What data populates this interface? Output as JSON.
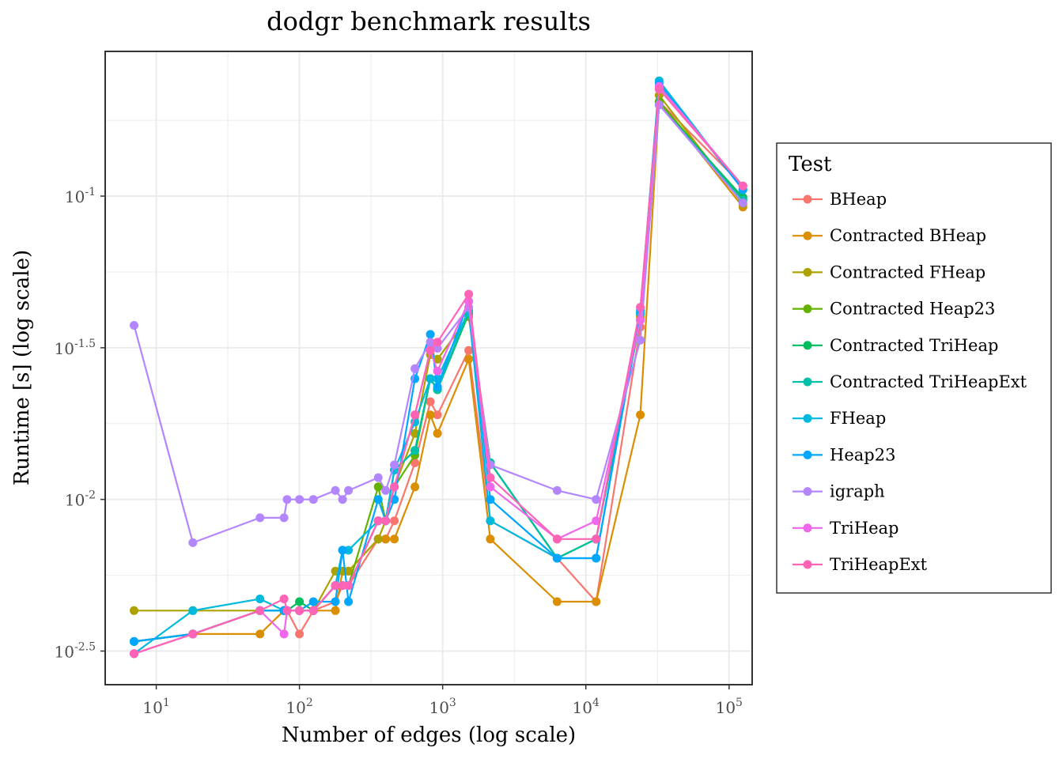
{
  "chart_data": {
    "type": "line",
    "title": "dodgr benchmark results",
    "xlabel": "Number of edges (log scale)",
    "ylabel": "Runtime [s] (log scale)",
    "x_scale": "log10",
    "y_scale": "log10",
    "x_ticks": [
      10,
      100,
      1000,
      10000,
      100000
    ],
    "y_ticks": [
      0.0031623,
      0.01,
      0.031623,
      0.1
    ],
    "x_tick_labels": [
      {
        "base": "10",
        "exp": "1"
      },
      {
        "base": "10",
        "exp": "2"
      },
      {
        "base": "10",
        "exp": "3"
      },
      {
        "base": "10",
        "exp": "4"
      },
      {
        "base": "10",
        "exp": "5"
      }
    ],
    "y_tick_labels": [
      {
        "base": "10",
        "exp": "-2.5"
      },
      {
        "base": "10",
        "exp": "-2"
      },
      {
        "base": "10",
        "exp": "-1.5"
      },
      {
        "base": "10",
        "exp": "-1"
      }
    ],
    "xlim": [
      4.4,
      145000
    ],
    "ylim": [
      0.00245,
      0.3
    ],
    "grid": true,
    "legend": {
      "title": "Test",
      "position": "right"
    },
    "x": [
      7,
      18,
      53,
      78,
      82,
      100,
      125,
      178,
      200,
      220,
      355,
      400,
      460,
      640,
      820,
      920,
      1520,
      2150,
      6300,
      11800,
      24000,
      32500,
      125000
    ],
    "series": [
      {
        "name": "BHeap",
        "color": "#F8766D",
        "values": [
          0.0034,
          0.0036,
          0.0043,
          0.0043,
          0.0043,
          0.0036,
          0.0043,
          0.0046,
          0.0052,
          0.0052,
          0.0074,
          0.0074,
          0.0085,
          0.0132,
          0.021,
          0.019,
          0.031,
          0.0085,
          0.0064,
          0.0046,
          0.037,
          0.205,
          0.108
        ]
      },
      {
        "name": "Contracted BHeap",
        "color": "#DB8E00",
        "values": [
          0.0034,
          0.0036,
          0.0036,
          0.0043,
          0.0043,
          0.0043,
          0.0043,
          0.0043,
          0.0058,
          0.0058,
          0.0074,
          0.0074,
          0.0074,
          0.011,
          0.019,
          0.0165,
          0.029,
          0.0074,
          0.0046,
          0.0046,
          0.019,
          0.205,
          0.092
        ]
      },
      {
        "name": "Contracted FHeap",
        "color": "#AEA200",
        "values": [
          0.0043,
          0.0043,
          0.0043,
          0.0043,
          0.0043,
          0.0043,
          0.0043,
          0.0058,
          0.0058,
          0.0058,
          0.0074,
          0.0085,
          0.011,
          0.0165,
          0.03,
          0.029,
          0.04,
          0.0132,
          0.0064,
          0.0074,
          0.04,
          0.215,
          0.094
        ]
      },
      {
        "name": "Contracted Heap23",
        "color": "#64B200",
        "values": [
          0.0034,
          0.0036,
          0.0043,
          0.0043,
          0.0043,
          0.0043,
          0.0043,
          0.0052,
          0.0052,
          0.0052,
          0.011,
          0.0085,
          0.011,
          0.014,
          0.025,
          0.023,
          0.042,
          0.0132,
          0.0064,
          0.0074,
          0.041,
          0.205,
          0.097
        ]
      },
      {
        "name": "Contracted TriHeap",
        "color": "#00BD5C",
        "values": [
          0.0034,
          0.0036,
          0.0043,
          0.0043,
          0.0043,
          0.0046,
          0.0043,
          0.0052,
          0.0052,
          0.0052,
          0.0085,
          0.0085,
          0.0125,
          0.0145,
          0.025,
          0.023,
          0.041,
          0.0132,
          0.0064,
          0.0074,
          0.039,
          0.2,
          0.099
        ]
      },
      {
        "name": "Contracted TriHeapExt",
        "color": "#00C1A7",
        "values": [
          0.0034,
          0.0036,
          0.0043,
          0.0043,
          0.0043,
          0.0043,
          0.0043,
          0.0052,
          0.0052,
          0.0052,
          0.0085,
          0.0085,
          0.0125,
          0.0145,
          0.025,
          0.023,
          0.042,
          0.0132,
          0.0064,
          0.0074,
          0.041,
          0.2,
          0.097
        ]
      },
      {
        "name": "FHeap",
        "color": "#00BADE",
        "values": [
          0.0031,
          0.0043,
          0.0047,
          0.0043,
          0.0043,
          0.0043,
          0.0043,
          0.0052,
          0.0068,
          0.0068,
          0.0085,
          0.0085,
          0.0125,
          0.018,
          0.025,
          0.025,
          0.042,
          0.0085,
          0.0064,
          0.0064,
          0.041,
          0.24,
          0.105
        ]
      },
      {
        "name": "Heap23",
        "color": "#00A6FF",
        "values": [
          0.0034,
          0.0036,
          0.0043,
          0.0043,
          0.0043,
          0.0043,
          0.0046,
          0.0046,
          0.0068,
          0.0046,
          0.01,
          0.0085,
          0.01,
          0.025,
          0.035,
          0.0235,
          0.045,
          0.01,
          0.0064,
          0.0064,
          0.042,
          0.235,
          0.105
        ]
      },
      {
        "name": "igraph",
        "color": "#B385FF",
        "values": [
          0.0375,
          0.0072,
          0.0087,
          0.0087,
          0.01,
          0.01,
          0.01,
          0.0107,
          0.01,
          0.0107,
          0.0118,
          0.0107,
          0.013,
          0.027,
          0.033,
          0.0315,
          0.043,
          0.013,
          0.0107,
          0.01,
          0.0335,
          0.2,
          0.095
        ]
      },
      {
        "name": "TriHeap",
        "color": "#EF67EB",
        "values": [
          0.0031,
          0.0036,
          0.0043,
          0.0036,
          0.0043,
          0.0043,
          0.0043,
          0.0052,
          0.0052,
          0.0052,
          0.0085,
          0.0085,
          0.011,
          0.019,
          0.031,
          0.0265,
          0.045,
          0.011,
          0.0074,
          0.0085,
          0.039,
          0.23,
          0.108
        ]
      },
      {
        "name": "TriHeapExt",
        "color": "#FF63B6",
        "values": [
          0.0031,
          0.0036,
          0.0043,
          0.0047,
          0.0043,
          0.0043,
          0.0043,
          0.0052,
          0.0052,
          0.0052,
          0.0085,
          0.0085,
          0.011,
          0.019,
          0.031,
          0.033,
          0.0475,
          0.0118,
          0.0074,
          0.0074,
          0.043,
          0.225,
          0.108
        ]
      }
    ]
  }
}
